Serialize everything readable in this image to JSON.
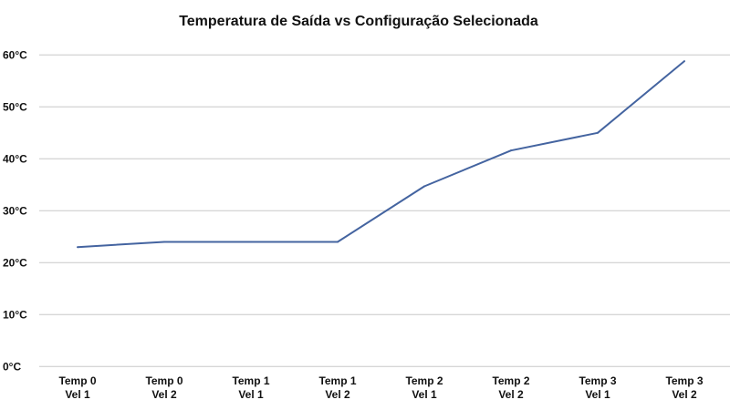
{
  "chart_data": {
    "type": "line",
    "title": "Temperatura de Saída vs Configuração Selecionada",
    "xlabel": "",
    "ylabel": "",
    "categories": [
      [
        "Temp 0",
        "Vel 1"
      ],
      [
        "Temp 0",
        "Vel 2"
      ],
      [
        "Temp 1",
        "Vel 1"
      ],
      [
        "Temp 1",
        "Vel 2"
      ],
      [
        "Temp 2",
        "Vel 1"
      ],
      [
        "Temp 2",
        "Vel 2"
      ],
      [
        "Temp 3",
        "Vel 1"
      ],
      [
        "Temp 3",
        "Vel 2"
      ]
    ],
    "series": [
      {
        "name": "Temperatura de Saída",
        "color": "#4464a0",
        "values": [
          23,
          24,
          24,
          24,
          34.7,
          41.6,
          45,
          58.8
        ]
      }
    ],
    "ylim": [
      0,
      60
    ],
    "yticks": [
      0,
      10,
      20,
      30,
      40,
      50,
      60
    ],
    "ytick_labels": [
      "0°C",
      "10°C",
      "20°C",
      "30°C",
      "40°C",
      "50°C",
      "60°C"
    ],
    "grid": true,
    "legend": "none"
  }
}
